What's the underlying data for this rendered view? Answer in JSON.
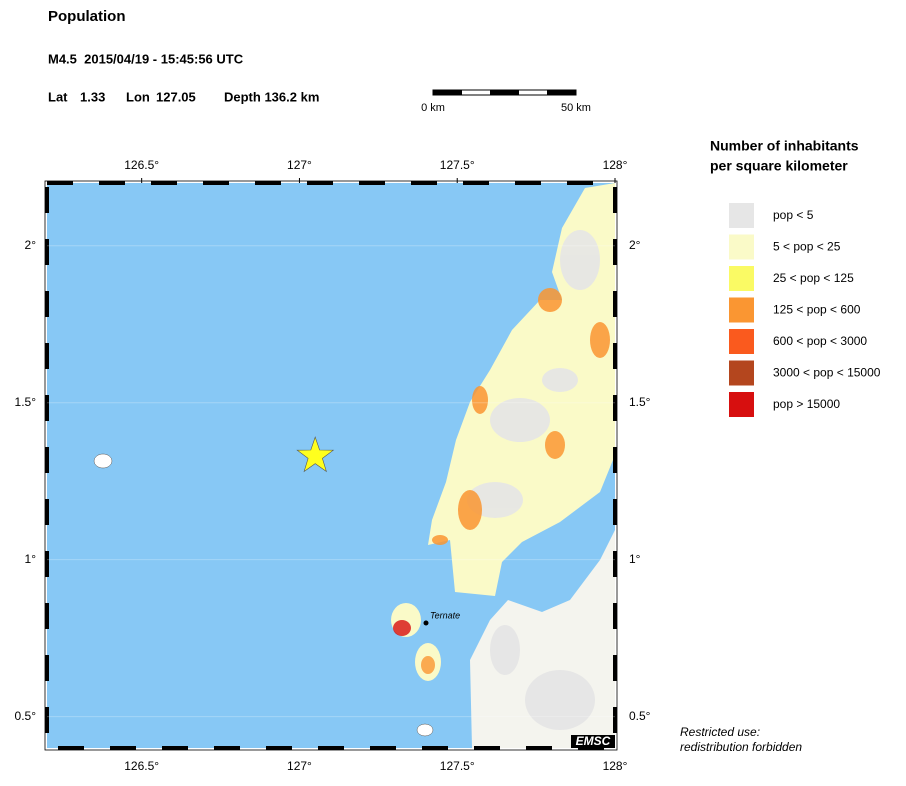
{
  "header": {
    "title": "Population",
    "event": "M4.5  2015/04/19 - 15:45:56 UTC",
    "lat_label": "Lat",
    "lat": 1.33,
    "lon_label": "Lon",
    "lon": 127.05,
    "depth": "Depth 136.2 km"
  },
  "scale_bar": {
    "start": "0 km",
    "end": "50 km"
  },
  "map": {
    "xlim": [
      126.2,
      128
    ],
    "ylim": [
      0.4,
      2.2
    ],
    "xticks": [
      {
        "value": 126.5,
        "label": "126.5°"
      },
      {
        "value": 127,
        "label": "127°"
      },
      {
        "value": 127.5,
        "label": "127.5°"
      },
      {
        "value": 128,
        "label": "128°"
      }
    ],
    "yticks": [
      {
        "value": 0.5,
        "label": "0.5°"
      },
      {
        "value": 1,
        "label": "1°"
      },
      {
        "value": 1.5,
        "label": "1.5°"
      },
      {
        "value": 2,
        "label": "2°"
      }
    ],
    "place": "Ternate",
    "credit": "EMSC"
  },
  "legend": {
    "title": [
      "Number of inhabitants",
      "per square kilometer"
    ],
    "items": [
      {
        "label": "pop < 5",
        "color": "#e6e6e6"
      },
      {
        "label": "5 < pop < 25",
        "color": "#fafac8"
      },
      {
        "label": "25 < pop < 125",
        "color": "#fafa64"
      },
      {
        "label": "125 < pop < 600",
        "color": "#fa9632"
      },
      {
        "label": "600 < pop < 3000",
        "color": "#fa5a1e"
      },
      {
        "label": "3000 < pop < 15000",
        "color": "#b4461e"
      },
      {
        "label": "pop > 15000",
        "color": "#d70f0f"
      }
    ]
  },
  "footer": [
    "Restricted use:",
    "redistribution forbidden"
  ]
}
